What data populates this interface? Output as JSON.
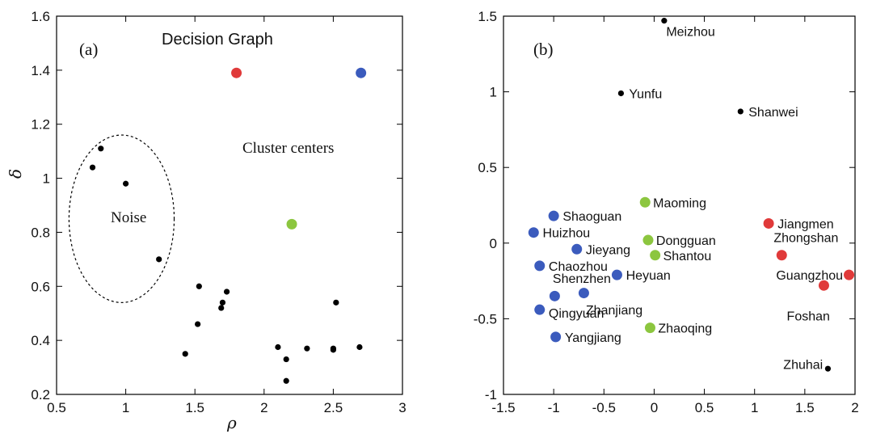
{
  "chart_data": [
    {
      "type": "scatter",
      "panel_label": "(a)",
      "title": "Decision Graph",
      "xlabel": "ρ",
      "ylabel": "δ",
      "xlim": [
        0.5,
        3
      ],
      "ylim": [
        0.2,
        1.6
      ],
      "xticks": [
        "0.5",
        "1",
        "1.5",
        "2",
        "2.5",
        "3"
      ],
      "yticks": [
        "0.2",
        "0.4",
        "0.6",
        "0.8",
        "1",
        "1.2",
        "1.4",
        "1.6"
      ],
      "annotations": {
        "cluster_centers": "Cluster centers",
        "noise": "Noise"
      },
      "colors": {
        "red": "#e03a3a",
        "blue": "#3b5bbd",
        "green": "#8cc63f",
        "black": "#000000"
      },
      "points": [
        {
          "x": 1.8,
          "y": 1.39,
          "color": "red",
          "size": "large"
        },
        {
          "x": 2.7,
          "y": 1.39,
          "color": "blue",
          "size": "large"
        },
        {
          "x": 2.2,
          "y": 0.83,
          "color": "green",
          "size": "large"
        },
        {
          "x": 0.82,
          "y": 1.11,
          "color": "black",
          "size": "small"
        },
        {
          "x": 0.76,
          "y": 1.04,
          "color": "black",
          "size": "small"
        },
        {
          "x": 1.0,
          "y": 0.98,
          "color": "black",
          "size": "small"
        },
        {
          "x": 1.24,
          "y": 0.7,
          "color": "black",
          "size": "small"
        },
        {
          "x": 1.53,
          "y": 0.6,
          "color": "black",
          "size": "small"
        },
        {
          "x": 1.52,
          "y": 0.46,
          "color": "black",
          "size": "small"
        },
        {
          "x": 1.43,
          "y": 0.35,
          "color": "black",
          "size": "small"
        },
        {
          "x": 1.73,
          "y": 0.58,
          "color": "black",
          "size": "small"
        },
        {
          "x": 1.7,
          "y": 0.54,
          "color": "black",
          "size": "small"
        },
        {
          "x": 1.69,
          "y": 0.52,
          "color": "black",
          "size": "small"
        },
        {
          "x": 2.1,
          "y": 0.375,
          "color": "black",
          "size": "small"
        },
        {
          "x": 2.16,
          "y": 0.33,
          "color": "black",
          "size": "small"
        },
        {
          "x": 2.16,
          "y": 0.25,
          "color": "black",
          "size": "small"
        },
        {
          "x": 2.31,
          "y": 0.37,
          "color": "black",
          "size": "small"
        },
        {
          "x": 2.5,
          "y": 0.37,
          "color": "black",
          "size": "small"
        },
        {
          "x": 2.5,
          "y": 0.365,
          "color": "black",
          "size": "small"
        },
        {
          "x": 2.52,
          "y": 0.54,
          "color": "black",
          "size": "small"
        },
        {
          "x": 2.69,
          "y": 0.375,
          "color": "black",
          "size": "small"
        }
      ],
      "noise_region": {
        "cx": 0.97,
        "cy": 0.85,
        "rx": 0.38,
        "ry": 0.31
      }
    },
    {
      "type": "scatter",
      "panel_label": "(b)",
      "xlim": [
        -1.5,
        2
      ],
      "ylim": [
        -1,
        1.5
      ],
      "xticks": [
        "-1.5",
        "-1",
        "-0.5",
        "0",
        "0.5",
        "1",
        "1.5",
        "2"
      ],
      "yticks": [
        "-1",
        "-0.5",
        "0",
        "0.5",
        "1",
        "1.5"
      ],
      "points": [
        {
          "name": "Meizhou",
          "x": 0.1,
          "y": 1.47,
          "color": "black",
          "size": "small",
          "label_dx": 0.02,
          "label_dy": -0.07,
          "anchor": "start"
        },
        {
          "name": "Yunfu",
          "x": -0.33,
          "y": 0.99,
          "color": "black",
          "size": "small",
          "label_dx": 0.08,
          "label_dy": 0,
          "anchor": "start"
        },
        {
          "name": "Shanwei",
          "x": 0.86,
          "y": 0.87,
          "color": "black",
          "size": "small",
          "label_dx": 0.08,
          "label_dy": 0,
          "anchor": "start"
        },
        {
          "name": "Zhuhai",
          "x": 1.73,
          "y": -0.83,
          "color": "black",
          "size": "small",
          "label_dx": -0.05,
          "label_dy": 0.03,
          "anchor": "end"
        },
        {
          "name": "Maoming",
          "x": -0.09,
          "y": 0.27,
          "color": "green",
          "size": "large",
          "label_dx": 0.08,
          "label_dy": 0,
          "anchor": "start"
        },
        {
          "name": "Dongguan",
          "x": -0.06,
          "y": 0.02,
          "color": "green",
          "size": "large",
          "label_dx": 0.08,
          "label_dy": 0,
          "anchor": "start"
        },
        {
          "name": "Shantou",
          "x": 0.01,
          "y": -0.08,
          "color": "green",
          "size": "large",
          "label_dx": 0.08,
          "label_dy": 0,
          "anchor": "start"
        },
        {
          "name": "Zhaoqing",
          "x": -0.04,
          "y": -0.56,
          "color": "green",
          "size": "large",
          "label_dx": 0.08,
          "label_dy": 0,
          "anchor": "start"
        },
        {
          "name": "Jiangmen",
          "x": 1.14,
          "y": 0.13,
          "color": "red",
          "size": "large",
          "label_dx": 0.09,
          "label_dy": 0,
          "anchor": "start"
        },
        {
          "name": "Zhongshan",
          "x": 1.27,
          "y": -0.08,
          "color": "red",
          "size": "large",
          "label_dx": -0.08,
          "label_dy": 0.12,
          "anchor": "start"
        },
        {
          "name": "Guangzhou",
          "x": 1.94,
          "y": -0.21,
          "color": "red",
          "size": "large",
          "label_dx": -0.06,
          "label_dy": 0,
          "anchor": "end"
        },
        {
          "name": "Foshan",
          "x": 1.69,
          "y": -0.28,
          "color": "red",
          "size": "large",
          "label_dx": 0.06,
          "label_dy": -0.2,
          "anchor": "end"
        },
        {
          "name": "Shaoguan",
          "x": -1.0,
          "y": 0.18,
          "color": "blue",
          "size": "large",
          "label_dx": 0.09,
          "label_dy": 0,
          "anchor": "start"
        },
        {
          "name": "Huizhou",
          "x": -1.2,
          "y": 0.07,
          "color": "blue",
          "size": "large",
          "label_dx": 0.09,
          "label_dy": 0,
          "anchor": "start"
        },
        {
          "name": "Jieyang",
          "x": -0.77,
          "y": -0.04,
          "color": "blue",
          "size": "large",
          "label_dx": 0.09,
          "label_dy": 0,
          "anchor": "start"
        },
        {
          "name": "Chaozhou",
          "x": -1.14,
          "y": -0.15,
          "color": "blue",
          "size": "large",
          "label_dx": 0.09,
          "label_dy": 0,
          "anchor": "start"
        },
        {
          "name": "Heyuan",
          "x": -0.37,
          "y": -0.21,
          "color": "blue",
          "size": "large",
          "label_dx": 0.09,
          "label_dy": 0,
          "anchor": "start"
        },
        {
          "name": "Shenzhen",
          "x": -0.7,
          "y": -0.33,
          "color": "blue",
          "size": "large",
          "label_dx": -0.31,
          "label_dy": 0.1,
          "anchor": "start"
        },
        {
          "name": "Zhanjiang",
          "x": -0.99,
          "y": -0.35,
          "color": "blue",
          "size": "large",
          "label_dx": 0.31,
          "label_dy": -0.09,
          "anchor": "start"
        },
        {
          "name": "Qingyuan",
          "x": -1.14,
          "y": -0.44,
          "color": "blue",
          "size": "large",
          "label_dx": 0.09,
          "label_dy": -0.02,
          "anchor": "start"
        },
        {
          "name": "Yangjiang",
          "x": -0.98,
          "y": -0.62,
          "color": "blue",
          "size": "large",
          "label_dx": 0.09,
          "label_dy": 0,
          "anchor": "start"
        }
      ]
    }
  ]
}
